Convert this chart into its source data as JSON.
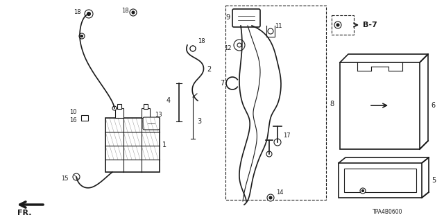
{
  "bg_color": "#ffffff",
  "line_color": "#1a1a1a",
  "diagram_code": "TPA4B0600",
  "fr_label": "FR.",
  "b7_label": "B-7",
  "figsize": [
    6.4,
    3.2
  ],
  "dpi": 100
}
